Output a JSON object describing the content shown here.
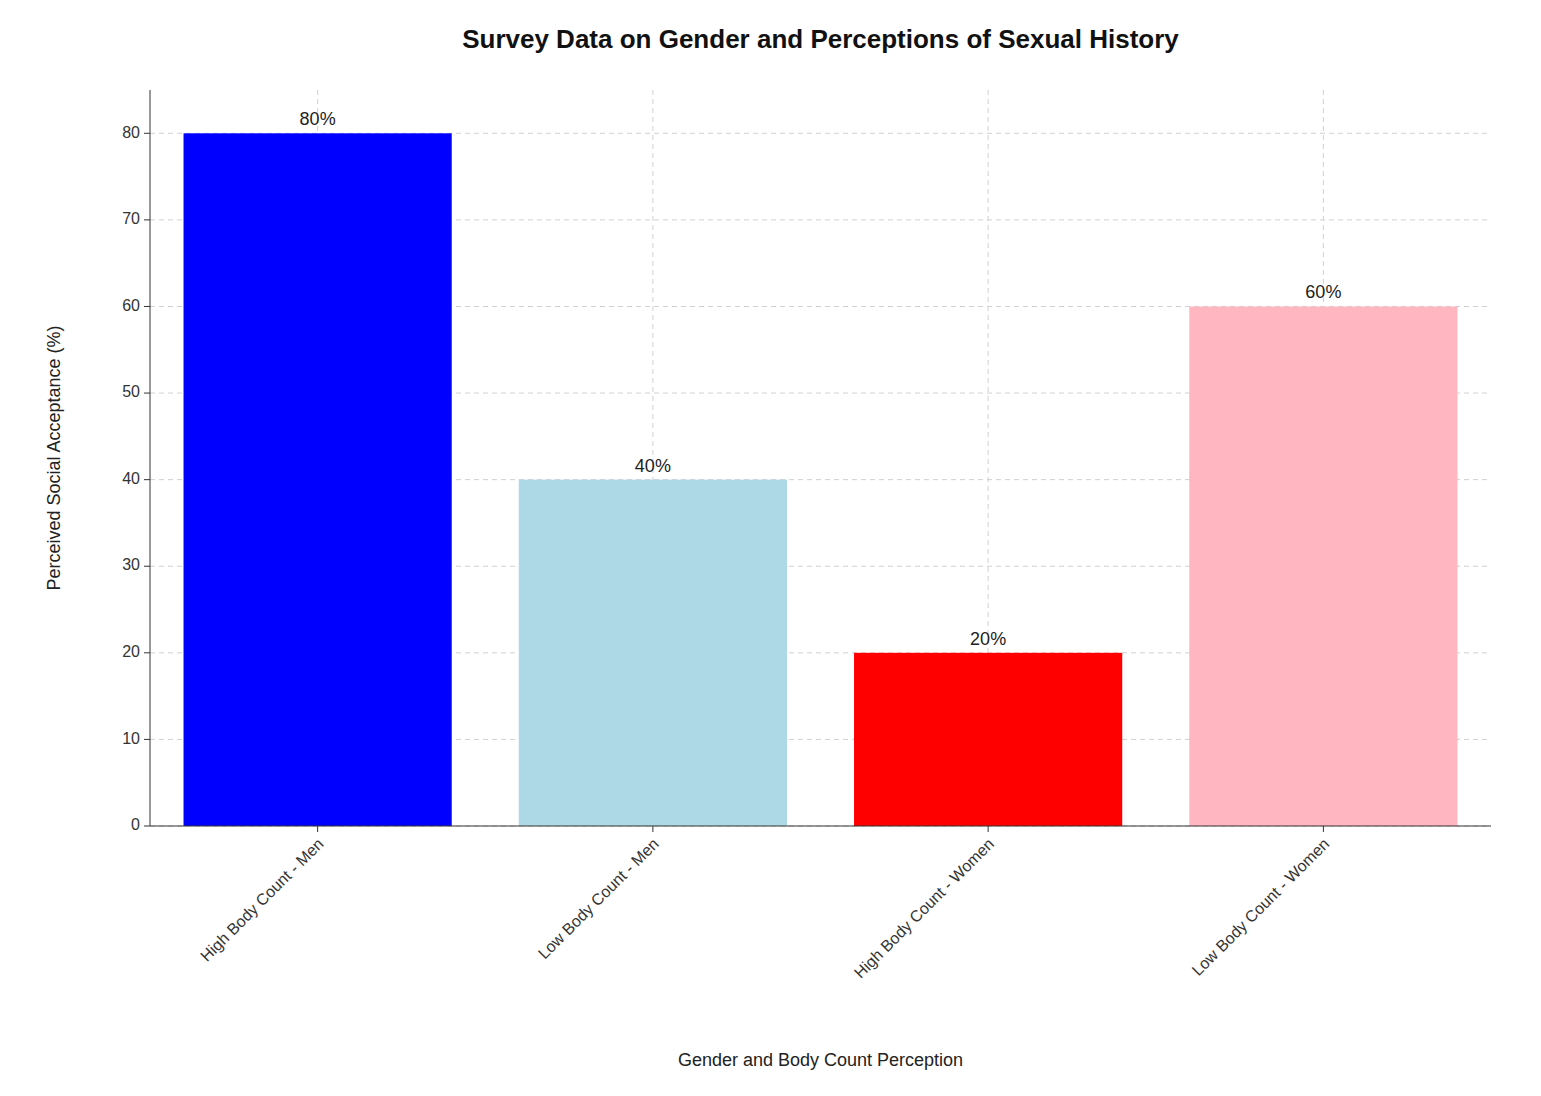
{
  "chart_data": {
    "type": "bar",
    "title": "Survey Data on Gender and Perceptions of Sexual History",
    "xlabel": "Gender and Body Count Perception",
    "ylabel": "Perceived Social Acceptance (%)",
    "categories": [
      "High Body Count - Men",
      "Low Body Count - Men",
      "High Body Count - Women",
      "Low Body Count - Women"
    ],
    "values": [
      80,
      40,
      20,
      60
    ],
    "value_labels": [
      "80%",
      "40%",
      "20%",
      "60%"
    ],
    "colors": [
      "#0000FF",
      "#ADD8E6",
      "#FF0000",
      "#FFB6C1"
    ],
    "ylim": [
      0,
      85
    ],
    "yticks": [
      0,
      10,
      20,
      30,
      40,
      50,
      60,
      70,
      80
    ],
    "grid": true,
    "data_labels": true
  }
}
